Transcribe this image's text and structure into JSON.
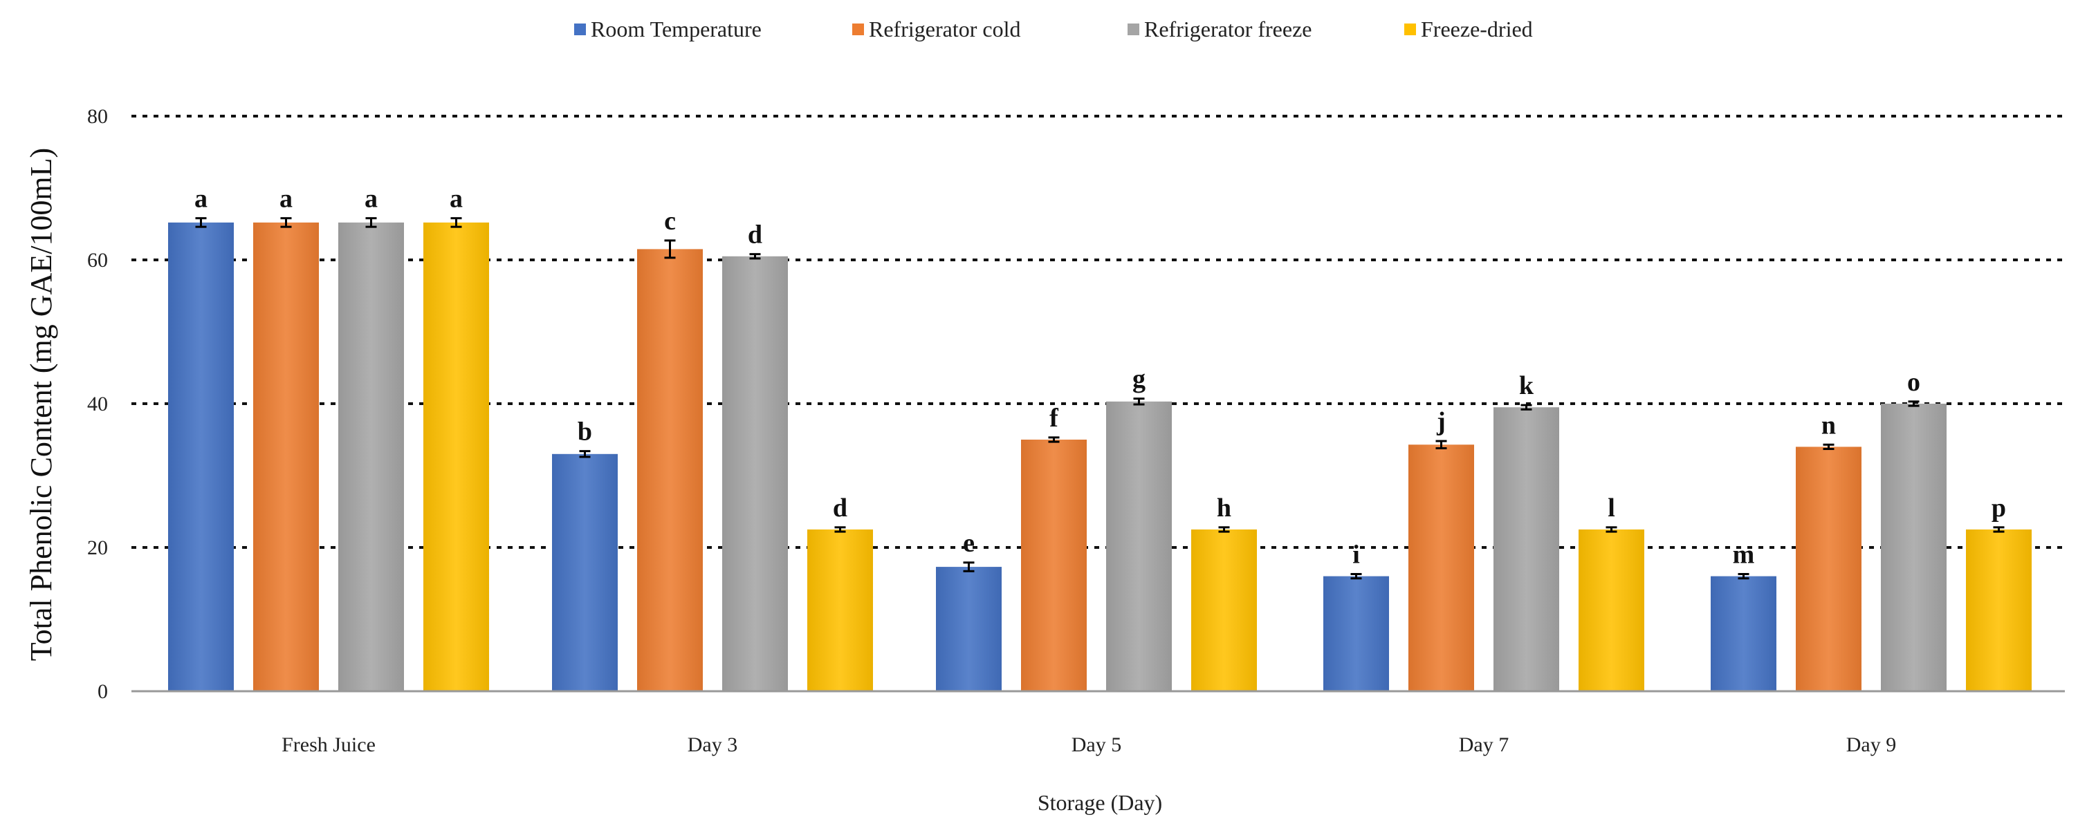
{
  "chart_data": {
    "type": "bar",
    "title": "",
    "xlabel": "Storage (Day)",
    "ylabel": "Total Phenolic Content (mg GAE/100mL)",
    "ylim": [
      0,
      80
    ],
    "yticks": [
      0,
      20,
      40,
      60,
      80
    ],
    "grid": true,
    "legend_position": "top",
    "categories": [
      "Fresh Juice",
      "Day 3",
      "Day 5",
      "Day 7",
      "Day 9"
    ],
    "series": [
      {
        "name": "Room Temperature",
        "color": "#4472C4",
        "values": [
          65.2,
          33.0,
          17.3,
          16.0,
          16.0
        ],
        "errors": [
          0.6,
          0.4,
          0.6,
          0.3,
          0.3
        ],
        "labels": [
          "a",
          "b",
          "e",
          "i",
          "m"
        ]
      },
      {
        "name": "Refrigerator cold",
        "color": "#ED7D31",
        "values": [
          65.2,
          61.5,
          35.0,
          34.3,
          34.0
        ],
        "errors": [
          0.6,
          1.2,
          0.3,
          0.5,
          0.3
        ],
        "labels": [
          "a",
          "c",
          "f",
          "j",
          "n"
        ]
      },
      {
        "name": "Refrigerator freeze",
        "color": "#A5A5A5",
        "values": [
          65.2,
          60.5,
          40.3,
          39.5,
          40.0
        ],
        "errors": [
          0.6,
          0.3,
          0.4,
          0.3,
          0.3
        ],
        "labels": [
          "a",
          "d",
          "g",
          "k",
          "o"
        ]
      },
      {
        "name": "Freeze-dried",
        "color": "#FFC000",
        "values": [
          65.2,
          22.5,
          22.5,
          22.5,
          22.5
        ],
        "errors": [
          0.6,
          0.3,
          0.3,
          0.3,
          0.3
        ],
        "labels": [
          "a",
          "d",
          "h",
          "l",
          "p"
        ]
      }
    ]
  }
}
